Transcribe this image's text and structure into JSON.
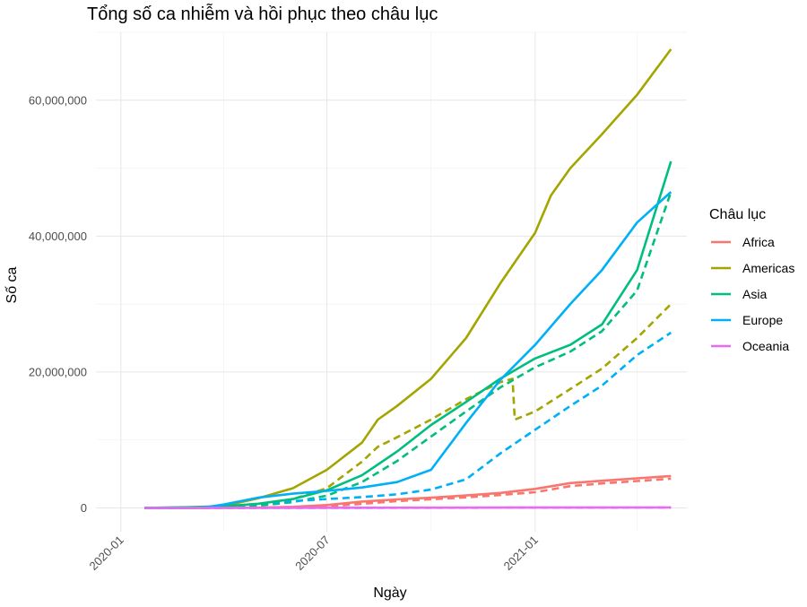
{
  "chart_data": {
    "type": "line",
    "title": "Tổng số ca nhiễm và hồi phục theo châu lục",
    "xlabel": "Ngày",
    "ylabel": "Số ca",
    "legend_title": "Châu lục",
    "legend_position": "right",
    "grid": true,
    "x_type": "date",
    "xlim": [
      "2019-12-10",
      "2021-05-15"
    ],
    "ylim": [
      -3500000,
      70000000
    ],
    "x_ticks": [
      {
        "value": "2020-01-01",
        "label": "2020-01"
      },
      {
        "value": "2020-07-01",
        "label": "2020-07"
      },
      {
        "value": "2021-01-01",
        "label": "2021-01"
      }
    ],
    "y_ticks": [
      {
        "value": 0,
        "label": "0"
      },
      {
        "value": 20000000,
        "label": "20,000,000"
      },
      {
        "value": 40000000,
        "label": "40,000,000"
      },
      {
        "value": 60000000,
        "label": "60,000,000"
      }
    ],
    "line_styles": {
      "confirmed": "solid",
      "recovered": "dashed"
    },
    "series": [
      {
        "name": "Africa",
        "color": "#F8766D",
        "confirmed": [
          [
            "2020-01-22",
            0
          ],
          [
            "2020-03-15",
            0
          ],
          [
            "2020-05-01",
            40000
          ],
          [
            "2020-06-01",
            150000
          ],
          [
            "2020-07-01",
            420000
          ],
          [
            "2020-08-01",
            940000
          ],
          [
            "2020-09-01",
            1250000
          ],
          [
            "2020-10-01",
            1500000
          ],
          [
            "2020-11-01",
            1830000
          ],
          [
            "2020-12-01",
            2200000
          ],
          [
            "2021-01-01",
            2800000
          ],
          [
            "2021-02-01",
            3650000
          ],
          [
            "2021-03-01",
            4000000
          ],
          [
            "2021-04-01",
            4350000
          ],
          [
            "2021-05-01",
            4700000
          ]
        ],
        "recovered": [
          [
            "2020-01-22",
            0
          ],
          [
            "2020-04-01",
            0
          ],
          [
            "2020-05-01",
            15000
          ],
          [
            "2020-06-01",
            70000
          ],
          [
            "2020-07-01",
            200000
          ],
          [
            "2020-08-01",
            600000
          ],
          [
            "2020-09-01",
            1000000
          ],
          [
            "2020-10-01",
            1280000
          ],
          [
            "2020-11-01",
            1550000
          ],
          [
            "2020-12-01",
            1900000
          ],
          [
            "2021-01-01",
            2300000
          ],
          [
            "2021-02-01",
            3200000
          ],
          [
            "2021-03-01",
            3600000
          ],
          [
            "2021-04-01",
            3950000
          ],
          [
            "2021-05-01",
            4300000
          ]
        ]
      },
      {
        "name": "Americas",
        "color": "#A3A500",
        "confirmed": [
          [
            "2020-01-22",
            0
          ],
          [
            "2020-03-01",
            100
          ],
          [
            "2020-03-15",
            15000
          ],
          [
            "2020-04-01",
            250000
          ],
          [
            "2020-04-15",
            800000
          ],
          [
            "2020-05-01",
            1400000
          ],
          [
            "2020-06-01",
            2900000
          ],
          [
            "2020-07-01",
            5600000
          ],
          [
            "2020-08-01",
            9600000
          ],
          [
            "2020-08-15",
            13000000
          ],
          [
            "2020-09-01",
            15000000
          ],
          [
            "2020-10-01",
            19000000
          ],
          [
            "2020-11-01",
            25000000
          ],
          [
            "2020-12-01",
            33000000
          ],
          [
            "2021-01-01",
            40500000
          ],
          [
            "2021-01-15",
            46000000
          ],
          [
            "2021-02-01",
            50000000
          ],
          [
            "2021-03-01",
            55000000
          ],
          [
            "2021-04-01",
            60800000
          ],
          [
            "2021-05-01",
            67500000
          ]
        ],
        "recovered": [
          [
            "2020-01-22",
            0
          ],
          [
            "2020-04-01",
            10000
          ],
          [
            "2020-05-01",
            300000
          ],
          [
            "2020-06-01",
            1300000
          ],
          [
            "2020-07-01",
            2900000
          ],
          [
            "2020-08-01",
            6800000
          ],
          [
            "2020-08-15",
            9000000
          ],
          [
            "2020-09-01",
            10400000
          ],
          [
            "2020-10-01",
            13000000
          ],
          [
            "2020-11-01",
            16000000
          ],
          [
            "2020-12-01",
            18500000
          ],
          [
            "2020-12-12",
            19000000
          ],
          [
            "2020-12-14",
            13000000
          ],
          [
            "2021-01-01",
            14200000
          ],
          [
            "2021-02-01",
            17500000
          ],
          [
            "2021-03-01",
            20500000
          ],
          [
            "2021-04-01",
            25000000
          ],
          [
            "2021-05-01",
            30000000
          ]
        ]
      },
      {
        "name": "Asia",
        "color": "#00BF7D",
        "confirmed": [
          [
            "2020-01-22",
            500
          ],
          [
            "2020-02-15",
            70000
          ],
          [
            "2020-03-01",
            100000
          ],
          [
            "2020-04-01",
            250000
          ],
          [
            "2020-05-01",
            600000
          ],
          [
            "2020-06-01",
            1300000
          ],
          [
            "2020-07-01",
            2600000
          ],
          [
            "2020-08-01",
            4800000
          ],
          [
            "2020-09-01",
            8300000
          ],
          [
            "2020-10-01",
            12200000
          ],
          [
            "2020-11-01",
            15600000
          ],
          [
            "2020-12-01",
            19000000
          ],
          [
            "2021-01-01",
            22000000
          ],
          [
            "2021-02-01",
            24000000
          ],
          [
            "2021-03-01",
            27000000
          ],
          [
            "2021-04-01",
            35000000
          ],
          [
            "2021-05-01",
            51000000
          ]
        ],
        "recovered": [
          [
            "2020-01-22",
            0
          ],
          [
            "2020-02-15",
            10000
          ],
          [
            "2020-03-01",
            40000
          ],
          [
            "2020-04-01",
            110000
          ],
          [
            "2020-05-01",
            320000
          ],
          [
            "2020-06-01",
            850000
          ],
          [
            "2020-07-01",
            1800000
          ],
          [
            "2020-08-01",
            3800000
          ],
          [
            "2020-09-01",
            6900000
          ],
          [
            "2020-10-01",
            10500000
          ],
          [
            "2020-11-01",
            14200000
          ],
          [
            "2020-12-01",
            17700000
          ],
          [
            "2021-01-01",
            20700000
          ],
          [
            "2021-02-01",
            23000000
          ],
          [
            "2021-03-01",
            26000000
          ],
          [
            "2021-04-01",
            32000000
          ],
          [
            "2021-05-01",
            46500000
          ]
        ]
      },
      {
        "name": "Europe",
        "color": "#00B0F6",
        "confirmed": [
          [
            "2020-01-22",
            0
          ],
          [
            "2020-02-15",
            50
          ],
          [
            "2020-03-01",
            3000
          ],
          [
            "2020-03-15",
            70000
          ],
          [
            "2020-04-01",
            500000
          ],
          [
            "2020-05-01",
            1500000
          ],
          [
            "2020-06-01",
            2100000
          ],
          [
            "2020-07-01",
            2500000
          ],
          [
            "2020-08-01",
            3000000
          ],
          [
            "2020-09-01",
            3800000
          ],
          [
            "2020-10-01",
            5600000
          ],
          [
            "2020-11-01",
            12500000
          ],
          [
            "2020-12-01",
            18800000
          ],
          [
            "2021-01-01",
            24000000
          ],
          [
            "2021-02-01",
            30000000
          ],
          [
            "2021-03-01",
            35000000
          ],
          [
            "2021-04-01",
            42000000
          ],
          [
            "2021-05-01",
            46500000
          ]
        ],
        "recovered": [
          [
            "2020-01-22",
            0
          ],
          [
            "2020-03-15",
            5000
          ],
          [
            "2020-04-01",
            100000
          ],
          [
            "2020-05-01",
            600000
          ],
          [
            "2020-06-01",
            1000000
          ],
          [
            "2020-07-01",
            1300000
          ],
          [
            "2020-08-01",
            1600000
          ],
          [
            "2020-09-01",
            2000000
          ],
          [
            "2020-10-01",
            2700000
          ],
          [
            "2020-11-01",
            4200000
          ],
          [
            "2020-12-01",
            8000000
          ],
          [
            "2021-01-01",
            11500000
          ],
          [
            "2021-02-01",
            15000000
          ],
          [
            "2021-03-01",
            18000000
          ],
          [
            "2021-04-01",
            22500000
          ],
          [
            "2021-05-01",
            25800000
          ]
        ]
      },
      {
        "name": "Oceania",
        "color": "#E76BF3",
        "confirmed": [
          [
            "2020-01-22",
            0
          ],
          [
            "2020-04-01",
            5000
          ],
          [
            "2020-08-01",
            25000
          ],
          [
            "2021-01-01",
            50000
          ],
          [
            "2021-05-01",
            60000
          ]
        ],
        "recovered": [
          [
            "2020-01-22",
            0
          ],
          [
            "2020-04-01",
            1000
          ],
          [
            "2020-08-01",
            15000
          ],
          [
            "2021-01-01",
            40000
          ],
          [
            "2021-05-01",
            55000
          ]
        ]
      }
    ]
  }
}
